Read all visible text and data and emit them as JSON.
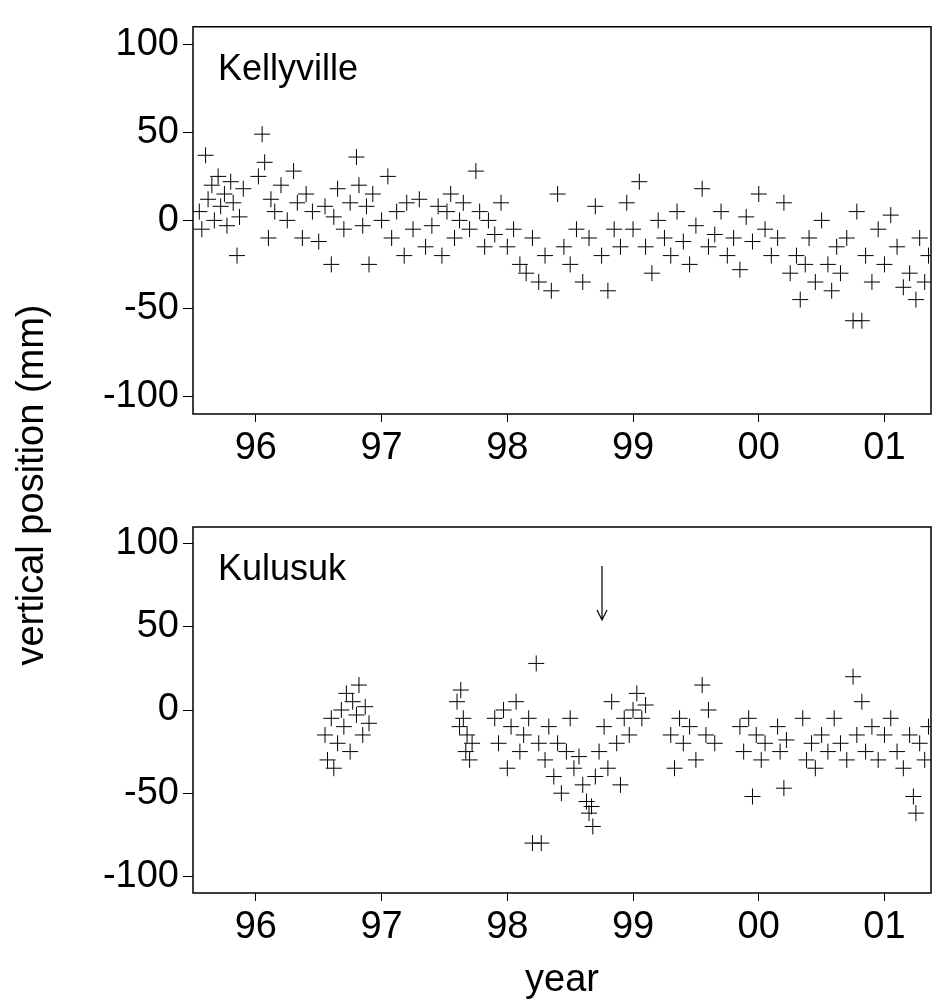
{
  "chart_data": [
    {
      "type": "scatter",
      "title": "Kellyville",
      "ylabel": "vertical position (mm)",
      "color": "#000000",
      "marker": "cross",
      "xlim": [
        1995.5,
        2001.37
      ],
      "xticks": [
        {
          "value": 1996,
          "label": "96"
        },
        {
          "value": 1997,
          "label": "97"
        },
        {
          "value": 1998,
          "label": "98"
        },
        {
          "value": 1999,
          "label": "99"
        },
        {
          "value": 2000,
          "label": "00"
        },
        {
          "value": 2001,
          "label": "01"
        }
      ],
      "ylim": [
        -110,
        110
      ],
      "yticks": [
        -100,
        -50,
        0,
        50,
        100
      ],
      "x": [
        1995.55,
        1995.57,
        1995.6,
        1995.62,
        1995.65,
        1995.67,
        1995.7,
        1995.72,
        1995.75,
        1995.77,
        1995.8,
        1995.82,
        1995.85,
        1995.87,
        1995.9,
        1996.02,
        1996.05,
        1996.07,
        1996.1,
        1996.12,
        1996.15,
        1996.2,
        1996.25,
        1996.3,
        1996.33,
        1996.37,
        1996.4,
        1996.45,
        1996.5,
        1996.55,
        1996.6,
        1996.62,
        1996.65,
        1996.7,
        1996.75,
        1996.8,
        1996.82,
        1996.85,
        1996.88,
        1996.9,
        1996.93,
        1997.0,
        1997.05,
        1997.08,
        1997.12,
        1997.18,
        1997.2,
        1997.25,
        1997.3,
        1997.35,
        1997.4,
        1997.45,
        1997.48,
        1997.52,
        1997.55,
        1997.58,
        1997.62,
        1997.65,
        1997.7,
        1997.75,
        1997.78,
        1997.82,
        1997.85,
        1997.9,
        1997.95,
        1998.0,
        1998.05,
        1998.1,
        1998.15,
        1998.2,
        1998.25,
        1998.3,
        1998.35,
        1998.4,
        1998.45,
        1998.5,
        1998.55,
        1998.6,
        1998.65,
        1998.7,
        1998.75,
        1998.8,
        1998.85,
        1998.9,
        1998.95,
        1999.0,
        1999.05,
        1999.1,
        1999.15,
        1999.2,
        1999.25,
        1999.3,
        1999.35,
        1999.4,
        1999.45,
        1999.5,
        1999.55,
        1999.6,
        1999.65,
        1999.7,
        1999.75,
        1999.8,
        1999.85,
        1999.9,
        1999.95,
        2000.0,
        2000.05,
        2000.1,
        2000.15,
        2000.2,
        2000.25,
        2000.3,
        2000.33,
        2000.37,
        2000.4,
        2000.45,
        2000.5,
        2000.55,
        2000.58,
        2000.62,
        2000.65,
        2000.7,
        2000.75,
        2000.78,
        2000.82,
        2000.85,
        2000.9,
        2000.95,
        2001.0,
        2001.05,
        2001.1,
        2001.15,
        2001.2,
        2001.25,
        2001.28,
        2001.32,
        2001.35
      ],
      "values": [
        5,
        -5,
        37,
        12,
        20,
        0,
        25,
        8,
        15,
        -3,
        22,
        10,
        -20,
        2,
        18,
        25,
        49,
        33,
        -10,
        12,
        5,
        20,
        0,
        28,
        10,
        -10,
        15,
        5,
        -12,
        8,
        -25,
        2,
        18,
        -5,
        10,
        36,
        20,
        -3,
        8,
        -25,
        15,
        0,
        25,
        -10,
        5,
        -20,
        10,
        -5,
        12,
        -15,
        -3,
        8,
        -20,
        5,
        15,
        -10,
        0,
        10,
        -5,
        28,
        5,
        -15,
        0,
        -8,
        10,
        -15,
        -5,
        -25,
        -30,
        -10,
        -35,
        -20,
        -40,
        15,
        -15,
        -25,
        -5,
        -35,
        -10,
        8,
        -20,
        -40,
        -5,
        -15,
        10,
        -5,
        22,
        -15,
        -30,
        0,
        -10,
        -20,
        5,
        -12,
        -25,
        -3,
        18,
        -15,
        -8,
        5,
        -20,
        -10,
        -28,
        2,
        -12,
        15,
        -5,
        -20,
        -10,
        10,
        -30,
        -20,
        -45,
        -25,
        -10,
        -35,
        0,
        -25,
        -40,
        -15,
        -30,
        -10,
        -57,
        5,
        -57,
        -20,
        -35,
        -5,
        -25,
        3,
        -15,
        -38,
        -30,
        -45,
        -10,
        -35,
        -20
      ]
    },
    {
      "type": "scatter",
      "title": "Kulusuk",
      "xlabel": "year",
      "color": "#000000",
      "marker": "cross",
      "xlim": [
        1995.5,
        2001.37
      ],
      "xticks": [
        {
          "value": 1996,
          "label": "96"
        },
        {
          "value": 1997,
          "label": "97"
        },
        {
          "value": 1998,
          "label": "98"
        },
        {
          "value": 1999,
          "label": "99"
        },
        {
          "value": 2000,
          "label": "00"
        },
        {
          "value": 2001,
          "label": "01"
        }
      ],
      "ylim": [
        -110,
        110
      ],
      "yticks": [
        -100,
        -50,
        0,
        50,
        100
      ],
      "x": [
        1996.55,
        1996.57,
        1996.6,
        1996.62,
        1996.65,
        1996.68,
        1996.7,
        1996.72,
        1996.75,
        1996.77,
        1996.8,
        1996.82,
        1996.85,
        1996.87,
        1996.9,
        1997.6,
        1997.62,
        1997.63,
        1997.65,
        1997.67,
        1997.68,
        1997.7,
        1997.72,
        1997.9,
        1997.93,
        1997.97,
        1998.0,
        1998.03,
        1998.07,
        1998.1,
        1998.13,
        1998.17,
        1998.2,
        1998.23,
        1998.27,
        1998.25,
        1998.3,
        1998.33,
        1998.37,
        1998.4,
        1998.43,
        1998.47,
        1998.5,
        1998.53,
        1998.57,
        1998.6,
        1998.63,
        1998.65,
        1998.67,
        1998.68,
        1998.7,
        1998.73,
        1998.77,
        1998.8,
        1998.83,
        1998.87,
        1998.9,
        1998.93,
        1998.97,
        1999.0,
        1999.03,
        1999.07,
        1999.1,
        1999.3,
        1999.33,
        1999.37,
        1999.4,
        1999.45,
        1999.5,
        1999.55,
        1999.58,
        1999.6,
        1999.65,
        1999.85,
        1999.88,
        1999.92,
        1999.95,
        1999.98,
        2000.02,
        2000.05,
        2000.15,
        2000.17,
        2000.2,
        2000.22,
        2000.35,
        2000.38,
        2000.42,
        2000.45,
        2000.5,
        2000.55,
        2000.6,
        2000.65,
        2000.7,
        2000.75,
        2000.78,
        2000.82,
        2000.85,
        2000.9,
        2000.95,
        2001.0,
        2001.05,
        2001.1,
        2001.15,
        2001.2,
        2001.23,
        2001.25,
        2001.28,
        2001.32,
        2001.35
      ],
      "values": [
        -15,
        -30,
        -5,
        -35,
        -20,
        0,
        -10,
        10,
        -25,
        5,
        -3,
        15,
        -15,
        2,
        -8,
        5,
        -10,
        12,
        -5,
        -25,
        -15,
        -30,
        -20,
        -5,
        -20,
        0,
        -35,
        -10,
        5,
        -25,
        -15,
        -5,
        -80,
        28,
        -80,
        -20,
        -30,
        -10,
        -40,
        -20,
        -50,
        -25,
        -5,
        -35,
        -28,
        -45,
        -55,
        -62,
        -58,
        -70,
        -40,
        -25,
        -10,
        -35,
        5,
        -20,
        -45,
        -5,
        -15,
        0,
        10,
        -5,
        3,
        -15,
        -35,
        -5,
        -20,
        -10,
        -30,
        15,
        -15,
        0,
        -20,
        -10,
        -25,
        -5,
        -52,
        -15,
        -30,
        -20,
        -10,
        -25,
        -47,
        -18,
        -5,
        -30,
        -20,
        -35,
        -15,
        -25,
        -5,
        -20,
        -30,
        20,
        -15,
        5,
        -25,
        -10,
        -30,
        -15,
        -5,
        -25,
        -35,
        -15,
        -52,
        -62,
        -20,
        -30,
        -10
      ]
    }
  ]
}
